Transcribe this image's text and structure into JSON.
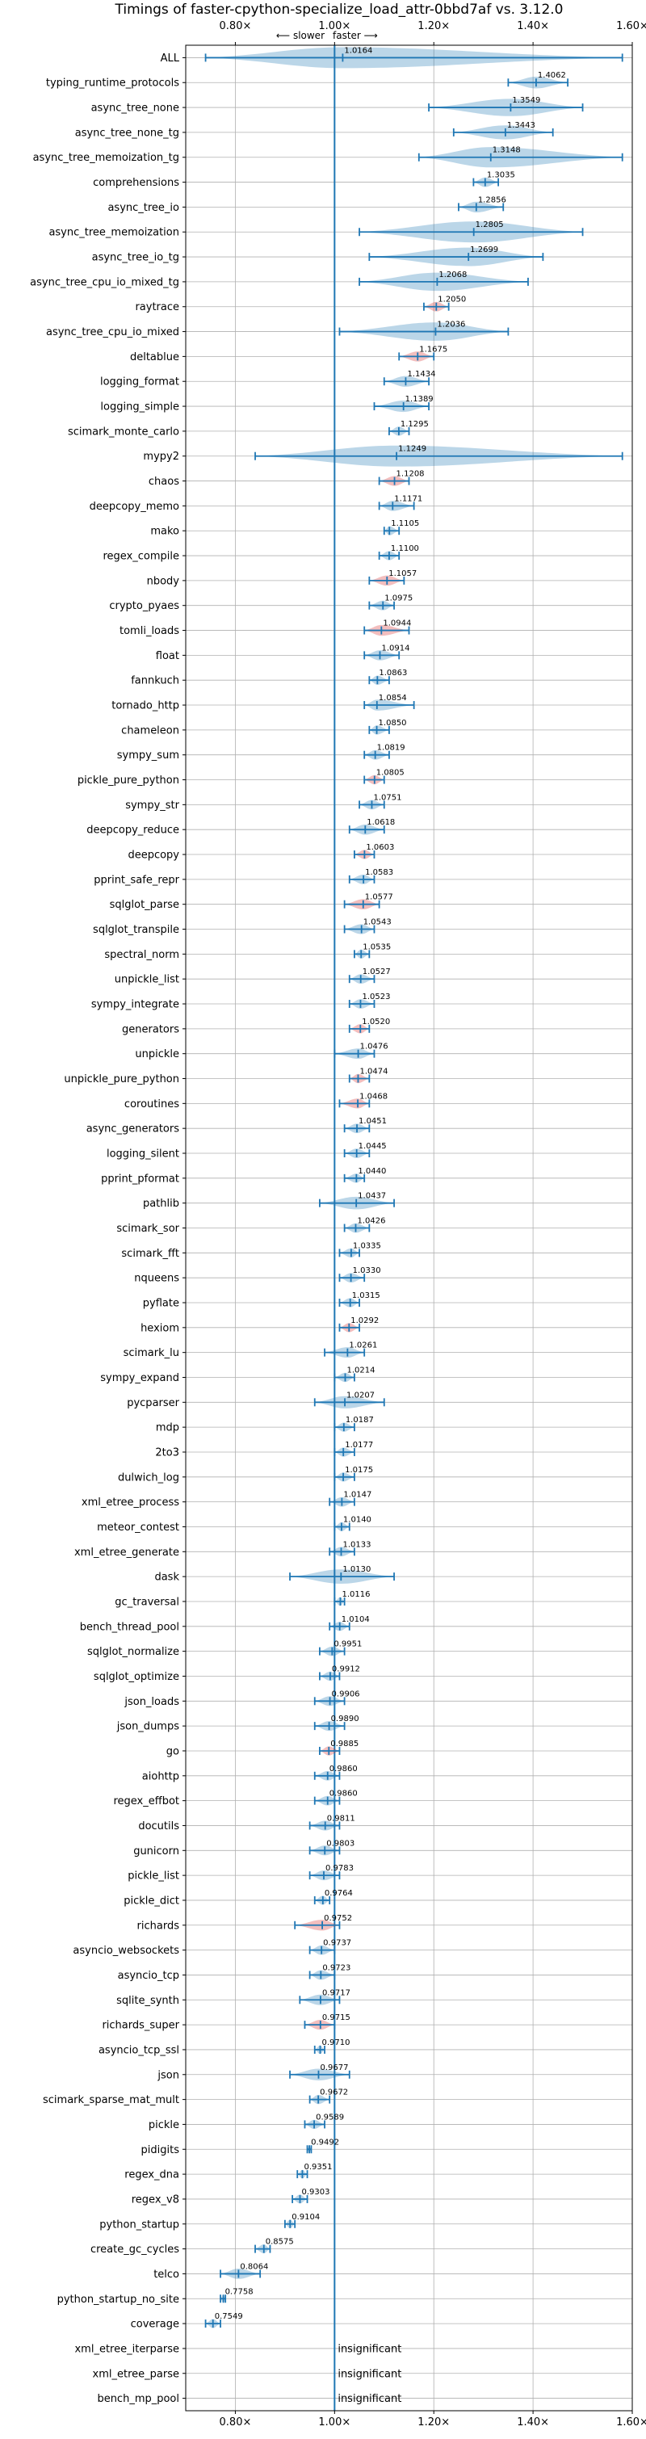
{
  "chart_data": {
    "type": "violin",
    "title": "Timings of faster-cpython-specialize_load_attr-0bbd7af vs. 3.12.0",
    "direction_hint": {
      "slower": "⟵ slower",
      "faster": "faster ⟶"
    },
    "xlim": [
      0.7,
      1.6
    ],
    "x_ticks": [
      0.8,
      1.0,
      1.2,
      1.4,
      1.6
    ],
    "x_tick_labels": [
      "0.80×",
      "1.00×",
      "1.20×",
      "1.40×",
      "1.60×"
    ],
    "baseline": 1.0,
    "grid": true,
    "colors": {
      "normal": "#1f77b4",
      "highlight": "#d62728"
    },
    "insignificant_text": "insignificant",
    "benchmarks": [
      {
        "name": "ALL",
        "value": 1.0164,
        "value_label": "1.0164",
        "min": 0.74,
        "max": 1.58,
        "highlight": false
      },
      {
        "name": "typing_runtime_protocols",
        "value": 1.4062,
        "value_label": "1.4062",
        "min": 1.35,
        "max": 1.47,
        "highlight": false
      },
      {
        "name": "async_tree_none",
        "value": 1.3549,
        "value_label": "1.3549",
        "min": 1.19,
        "max": 1.5,
        "highlight": false
      },
      {
        "name": "async_tree_none_tg",
        "value": 1.3443,
        "value_label": "1.3443",
        "min": 1.24,
        "max": 1.44,
        "highlight": false
      },
      {
        "name": "async_tree_memoization_tg",
        "value": 1.3148,
        "value_label": "1.3148",
        "min": 1.17,
        "max": 1.58,
        "highlight": false
      },
      {
        "name": "comprehensions",
        "value": 1.3035,
        "value_label": "1.3035",
        "min": 1.28,
        "max": 1.33,
        "highlight": false
      },
      {
        "name": "async_tree_io",
        "value": 1.2856,
        "value_label": "1.2856",
        "min": 1.25,
        "max": 1.34,
        "highlight": false
      },
      {
        "name": "async_tree_memoization",
        "value": 1.2805,
        "value_label": "1.2805",
        "min": 1.05,
        "max": 1.5,
        "highlight": false
      },
      {
        "name": "async_tree_io_tg",
        "value": 1.2699,
        "value_label": "1.2699",
        "min": 1.07,
        "max": 1.42,
        "highlight": false
      },
      {
        "name": "async_tree_cpu_io_mixed_tg",
        "value": 1.2068,
        "value_label": "1.2068",
        "min": 1.05,
        "max": 1.39,
        "highlight": false
      },
      {
        "name": "raytrace",
        "value": 1.205,
        "value_label": "1.2050",
        "min": 1.18,
        "max": 1.23,
        "highlight": true
      },
      {
        "name": "async_tree_cpu_io_mixed",
        "value": 1.2036,
        "value_label": "1.2036",
        "min": 1.01,
        "max": 1.35,
        "highlight": false
      },
      {
        "name": "deltablue",
        "value": 1.1675,
        "value_label": "1.1675",
        "min": 1.13,
        "max": 1.2,
        "highlight": true
      },
      {
        "name": "logging_format",
        "value": 1.1434,
        "value_label": "1.1434",
        "min": 1.1,
        "max": 1.19,
        "highlight": false
      },
      {
        "name": "logging_simple",
        "value": 1.1389,
        "value_label": "1.1389",
        "min": 1.08,
        "max": 1.19,
        "highlight": false
      },
      {
        "name": "scimark_monte_carlo",
        "value": 1.1295,
        "value_label": "1.1295",
        "min": 1.11,
        "max": 1.15,
        "highlight": false
      },
      {
        "name": "mypy2",
        "value": 1.1249,
        "value_label": "1.1249",
        "min": 0.84,
        "max": 1.58,
        "highlight": false
      },
      {
        "name": "chaos",
        "value": 1.1208,
        "value_label": "1.1208",
        "min": 1.09,
        "max": 1.15,
        "highlight": true
      },
      {
        "name": "deepcopy_memo",
        "value": 1.1171,
        "value_label": "1.1171",
        "min": 1.09,
        "max": 1.16,
        "highlight": false
      },
      {
        "name": "mako",
        "value": 1.1105,
        "value_label": "1.1105",
        "min": 1.1,
        "max": 1.13,
        "highlight": false
      },
      {
        "name": "regex_compile",
        "value": 1.11,
        "value_label": "1.1100",
        "min": 1.09,
        "max": 1.13,
        "highlight": false
      },
      {
        "name": "nbody",
        "value": 1.1057,
        "value_label": "1.1057",
        "min": 1.07,
        "max": 1.14,
        "highlight": true
      },
      {
        "name": "crypto_pyaes",
        "value": 1.0975,
        "value_label": "1.0975",
        "min": 1.07,
        "max": 1.12,
        "highlight": false
      },
      {
        "name": "tomli_loads",
        "value": 1.0944,
        "value_label": "1.0944",
        "min": 1.06,
        "max": 1.15,
        "highlight": true
      },
      {
        "name": "float",
        "value": 1.0914,
        "value_label": "1.0914",
        "min": 1.06,
        "max": 1.13,
        "highlight": false
      },
      {
        "name": "fannkuch",
        "value": 1.0863,
        "value_label": "1.0863",
        "min": 1.07,
        "max": 1.11,
        "highlight": false
      },
      {
        "name": "tornado_http",
        "value": 1.0854,
        "value_label": "1.0854",
        "min": 1.06,
        "max": 1.16,
        "highlight": false
      },
      {
        "name": "chameleon",
        "value": 1.085,
        "value_label": "1.0850",
        "min": 1.07,
        "max": 1.11,
        "highlight": false
      },
      {
        "name": "sympy_sum",
        "value": 1.0819,
        "value_label": "1.0819",
        "min": 1.06,
        "max": 1.11,
        "highlight": false
      },
      {
        "name": "pickle_pure_python",
        "value": 1.0805,
        "value_label": "1.0805",
        "min": 1.06,
        "max": 1.1,
        "highlight": true
      },
      {
        "name": "sympy_str",
        "value": 1.0751,
        "value_label": "1.0751",
        "min": 1.05,
        "max": 1.1,
        "highlight": false
      },
      {
        "name": "deepcopy_reduce",
        "value": 1.0618,
        "value_label": "1.0618",
        "min": 1.03,
        "max": 1.1,
        "highlight": false
      },
      {
        "name": "deepcopy",
        "value": 1.0603,
        "value_label": "1.0603",
        "min": 1.04,
        "max": 1.08,
        "highlight": true
      },
      {
        "name": "pprint_safe_repr",
        "value": 1.0583,
        "value_label": "1.0583",
        "min": 1.03,
        "max": 1.08,
        "highlight": false
      },
      {
        "name": "sqlglot_parse",
        "value": 1.0577,
        "value_label": "1.0577",
        "min": 1.02,
        "max": 1.09,
        "highlight": true
      },
      {
        "name": "sqlglot_transpile",
        "value": 1.0543,
        "value_label": "1.0543",
        "min": 1.02,
        "max": 1.08,
        "highlight": false
      },
      {
        "name": "spectral_norm",
        "value": 1.0535,
        "value_label": "1.0535",
        "min": 1.04,
        "max": 1.07,
        "highlight": false
      },
      {
        "name": "unpickle_list",
        "value": 1.0527,
        "value_label": "1.0527",
        "min": 1.03,
        "max": 1.08,
        "highlight": false
      },
      {
        "name": "sympy_integrate",
        "value": 1.0523,
        "value_label": "1.0523",
        "min": 1.03,
        "max": 1.08,
        "highlight": false
      },
      {
        "name": "generators",
        "value": 1.052,
        "value_label": "1.0520",
        "min": 1.03,
        "max": 1.07,
        "highlight": true
      },
      {
        "name": "unpickle",
        "value": 1.0476,
        "value_label": "1.0476",
        "min": 1.0,
        "max": 1.08,
        "highlight": false
      },
      {
        "name": "unpickle_pure_python",
        "value": 1.0474,
        "value_label": "1.0474",
        "min": 1.03,
        "max": 1.07,
        "highlight": true
      },
      {
        "name": "coroutines",
        "value": 1.0468,
        "value_label": "1.0468",
        "min": 1.01,
        "max": 1.07,
        "highlight": true
      },
      {
        "name": "async_generators",
        "value": 1.0451,
        "value_label": "1.0451",
        "min": 1.02,
        "max": 1.07,
        "highlight": false
      },
      {
        "name": "logging_silent",
        "value": 1.0445,
        "value_label": "1.0445",
        "min": 1.02,
        "max": 1.07,
        "highlight": false
      },
      {
        "name": "pprint_pformat",
        "value": 1.044,
        "value_label": "1.0440",
        "min": 1.02,
        "max": 1.06,
        "highlight": false
      },
      {
        "name": "pathlib",
        "value": 1.0437,
        "value_label": "1.0437",
        "min": 0.97,
        "max": 1.12,
        "highlight": false
      },
      {
        "name": "scimark_sor",
        "value": 1.0426,
        "value_label": "1.0426",
        "min": 1.02,
        "max": 1.07,
        "highlight": false
      },
      {
        "name": "scimark_fft",
        "value": 1.0335,
        "value_label": "1.0335",
        "min": 1.01,
        "max": 1.05,
        "highlight": false
      },
      {
        "name": "nqueens",
        "value": 1.033,
        "value_label": "1.0330",
        "min": 1.01,
        "max": 1.06,
        "highlight": false
      },
      {
        "name": "pyflate",
        "value": 1.0315,
        "value_label": "1.0315",
        "min": 1.01,
        "max": 1.05,
        "highlight": false
      },
      {
        "name": "hexiom",
        "value": 1.0292,
        "value_label": "1.0292",
        "min": 1.01,
        "max": 1.05,
        "highlight": true
      },
      {
        "name": "scimark_lu",
        "value": 1.0261,
        "value_label": "1.0261",
        "min": 0.98,
        "max": 1.06,
        "highlight": false
      },
      {
        "name": "sympy_expand",
        "value": 1.0214,
        "value_label": "1.0214",
        "min": 1.0,
        "max": 1.04,
        "highlight": false
      },
      {
        "name": "pycparser",
        "value": 1.0207,
        "value_label": "1.0207",
        "min": 0.96,
        "max": 1.1,
        "highlight": false
      },
      {
        "name": "mdp",
        "value": 1.0187,
        "value_label": "1.0187",
        "min": 1.0,
        "max": 1.04,
        "highlight": false
      },
      {
        "name": "2to3",
        "value": 1.0177,
        "value_label": "1.0177",
        "min": 1.0,
        "max": 1.04,
        "highlight": false
      },
      {
        "name": "dulwich_log",
        "value": 1.0175,
        "value_label": "1.0175",
        "min": 1.0,
        "max": 1.04,
        "highlight": false
      },
      {
        "name": "xml_etree_process",
        "value": 1.0147,
        "value_label": "1.0147",
        "min": 0.99,
        "max": 1.04,
        "highlight": false
      },
      {
        "name": "meteor_contest",
        "value": 1.014,
        "value_label": "1.0140",
        "min": 1.0,
        "max": 1.03,
        "highlight": false
      },
      {
        "name": "xml_etree_generate",
        "value": 1.0133,
        "value_label": "1.0133",
        "min": 0.99,
        "max": 1.04,
        "highlight": false
      },
      {
        "name": "dask",
        "value": 1.013,
        "value_label": "1.0130",
        "min": 0.91,
        "max": 1.12,
        "highlight": false
      },
      {
        "name": "gc_traversal",
        "value": 1.0116,
        "value_label": "1.0116",
        "min": 1.0,
        "max": 1.02,
        "highlight": false
      },
      {
        "name": "bench_thread_pool",
        "value": 1.0104,
        "value_label": "1.0104",
        "min": 0.99,
        "max": 1.03,
        "highlight": false
      },
      {
        "name": "sqlglot_normalize",
        "value": 0.9951,
        "value_label": "0.9951",
        "min": 0.97,
        "max": 1.02,
        "highlight": false
      },
      {
        "name": "sqlglot_optimize",
        "value": 0.9912,
        "value_label": "0.9912",
        "min": 0.97,
        "max": 1.01,
        "highlight": false
      },
      {
        "name": "json_loads",
        "value": 0.9906,
        "value_label": "0.9906",
        "min": 0.96,
        "max": 1.02,
        "highlight": false
      },
      {
        "name": "json_dumps",
        "value": 0.989,
        "value_label": "0.9890",
        "min": 0.96,
        "max": 1.02,
        "highlight": false
      },
      {
        "name": "go",
        "value": 0.9885,
        "value_label": "0.9885",
        "min": 0.97,
        "max": 1.01,
        "highlight": true
      },
      {
        "name": "aiohttp",
        "value": 0.986,
        "value_label": "0.9860",
        "min": 0.96,
        "max": 1.01,
        "highlight": false
      },
      {
        "name": "regex_effbot",
        "value": 0.986,
        "value_label": "0.9860",
        "min": 0.96,
        "max": 1.01,
        "highlight": false
      },
      {
        "name": "docutils",
        "value": 0.9811,
        "value_label": "0.9811",
        "min": 0.95,
        "max": 1.01,
        "highlight": false
      },
      {
        "name": "gunicorn",
        "value": 0.9803,
        "value_label": "0.9803",
        "min": 0.95,
        "max": 1.01,
        "highlight": false
      },
      {
        "name": "pickle_list",
        "value": 0.9783,
        "value_label": "0.9783",
        "min": 0.95,
        "max": 1.01,
        "highlight": false
      },
      {
        "name": "pickle_dict",
        "value": 0.9764,
        "value_label": "0.9764",
        "min": 0.96,
        "max": 0.99,
        "highlight": false
      },
      {
        "name": "richards",
        "value": 0.9752,
        "value_label": "0.9752",
        "min": 0.92,
        "max": 1.01,
        "highlight": true
      },
      {
        "name": "asyncio_websockets",
        "value": 0.9737,
        "value_label": "0.9737",
        "min": 0.95,
        "max": 1.0,
        "highlight": false
      },
      {
        "name": "asyncio_tcp",
        "value": 0.9723,
        "value_label": "0.9723",
        "min": 0.95,
        "max": 1.0,
        "highlight": false
      },
      {
        "name": "sqlite_synth",
        "value": 0.9717,
        "value_label": "0.9717",
        "min": 0.93,
        "max": 1.01,
        "highlight": false
      },
      {
        "name": "richards_super",
        "value": 0.9715,
        "value_label": "0.9715",
        "min": 0.94,
        "max": 1.0,
        "highlight": true
      },
      {
        "name": "asyncio_tcp_ssl",
        "value": 0.971,
        "value_label": "0.9710",
        "min": 0.96,
        "max": 0.98,
        "highlight": false
      },
      {
        "name": "json",
        "value": 0.9677,
        "value_label": "0.9677",
        "min": 0.91,
        "max": 1.03,
        "highlight": false
      },
      {
        "name": "scimark_sparse_mat_mult",
        "value": 0.9672,
        "value_label": "0.9672",
        "min": 0.95,
        "max": 0.99,
        "highlight": false
      },
      {
        "name": "pickle",
        "value": 0.9589,
        "value_label": "0.9589",
        "min": 0.94,
        "max": 0.98,
        "highlight": false
      },
      {
        "name": "pidigits",
        "value": 0.9492,
        "value_label": "0.9492",
        "min": 0.945,
        "max": 0.953,
        "highlight": false
      },
      {
        "name": "regex_dna",
        "value": 0.9351,
        "value_label": "0.9351",
        "min": 0.925,
        "max": 0.945,
        "highlight": false
      },
      {
        "name": "regex_v8",
        "value": 0.9303,
        "value_label": "0.9303",
        "min": 0.915,
        "max": 0.945,
        "highlight": false
      },
      {
        "name": "python_startup",
        "value": 0.9104,
        "value_label": "0.9104",
        "min": 0.9,
        "max": 0.92,
        "highlight": false
      },
      {
        "name": "create_gc_cycles",
        "value": 0.8575,
        "value_label": "0.8575",
        "min": 0.84,
        "max": 0.87,
        "highlight": false
      },
      {
        "name": "telco",
        "value": 0.8064,
        "value_label": "0.8064",
        "min": 0.77,
        "max": 0.85,
        "highlight": false
      },
      {
        "name": "python_startup_no_site",
        "value": 0.7758,
        "value_label": "0.7758",
        "min": 0.77,
        "max": 0.78,
        "highlight": false
      },
      {
        "name": "coverage",
        "value": 0.7549,
        "value_label": "0.7549",
        "min": 0.74,
        "max": 0.77,
        "highlight": false
      },
      {
        "name": "xml_etree_iterparse",
        "value": null,
        "value_label": "insignificant",
        "min": null,
        "max": null,
        "highlight": false
      },
      {
        "name": "xml_etree_parse",
        "value": null,
        "value_label": "insignificant",
        "min": null,
        "max": null,
        "highlight": false
      },
      {
        "name": "bench_mp_pool",
        "value": null,
        "value_label": "insignificant",
        "min": null,
        "max": null,
        "highlight": false
      }
    ]
  }
}
